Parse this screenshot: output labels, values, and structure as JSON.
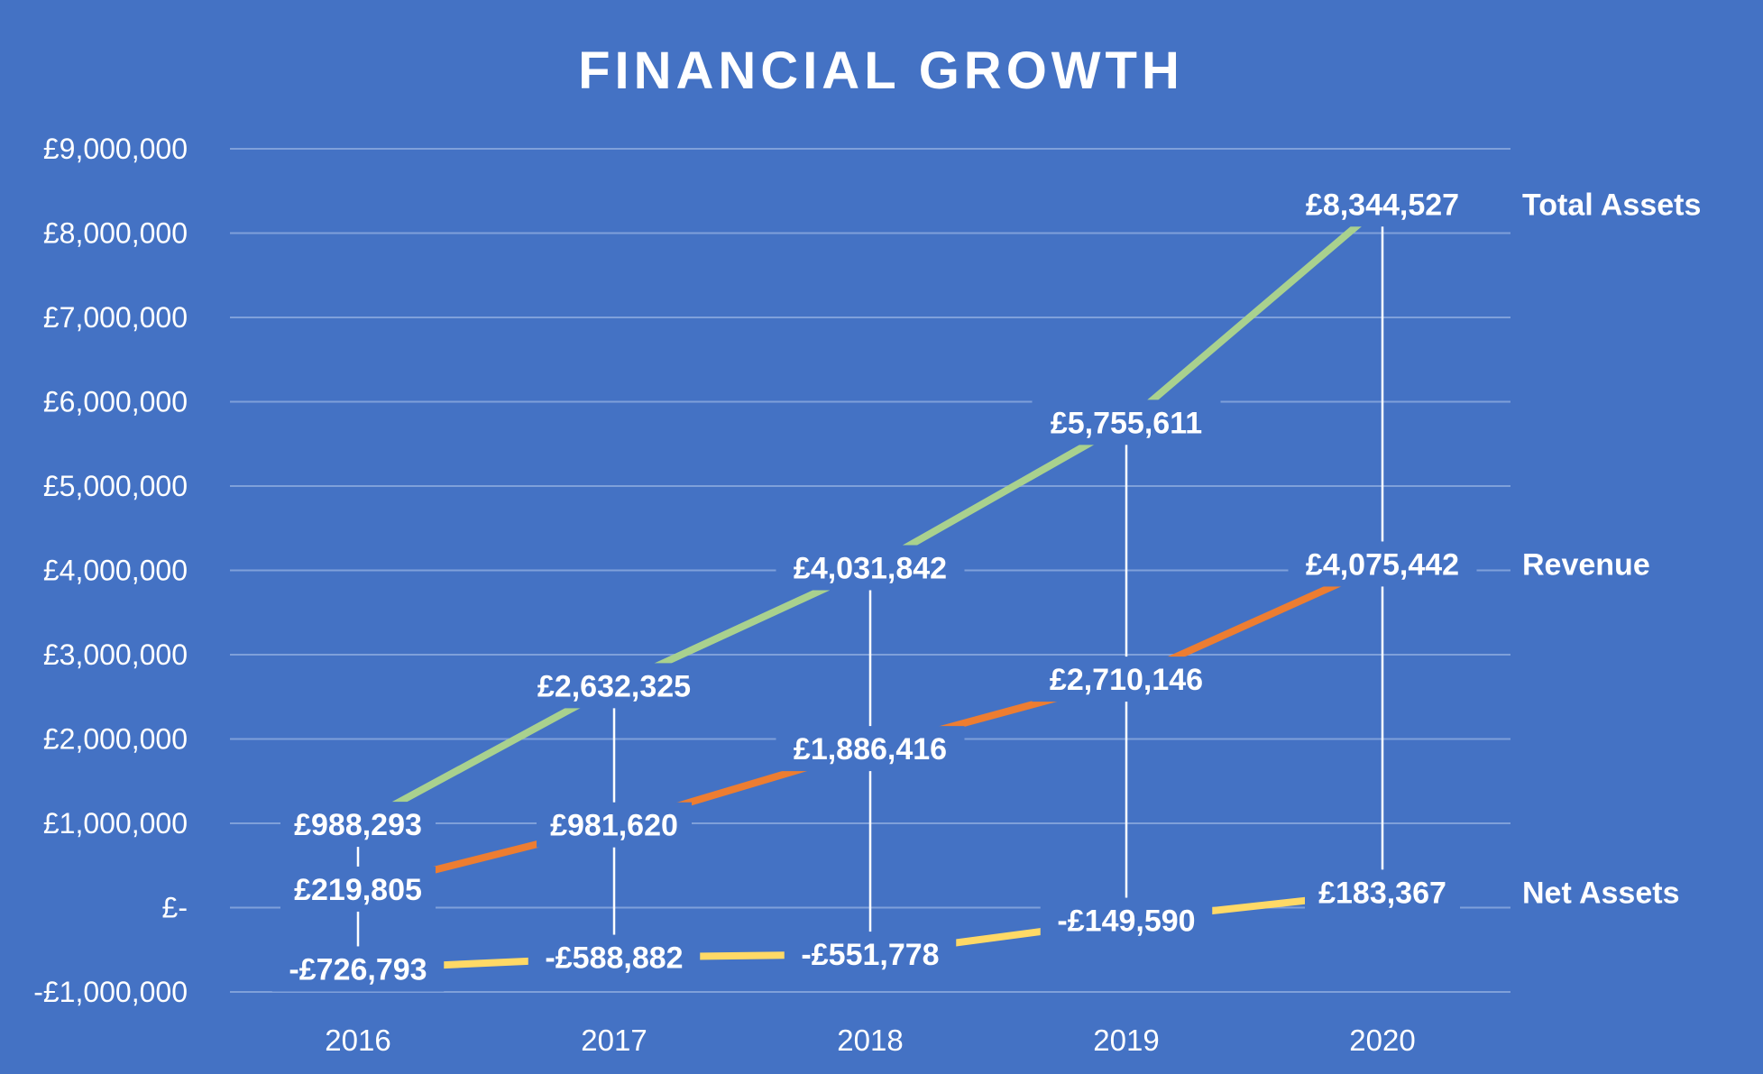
{
  "chart_data": {
    "type": "line",
    "title": "FINANCIAL GROWTH",
    "xlabel": "",
    "ylabel": "",
    "categories": [
      "2016",
      "2017",
      "2018",
      "2019",
      "2020"
    ],
    "ylim": [
      -1000000,
      9000000
    ],
    "y_ticks": [
      {
        "value": 9000000,
        "label": "£9,000,000"
      },
      {
        "value": 8000000,
        "label": "£8,000,000"
      },
      {
        "value": 7000000,
        "label": "£7,000,000"
      },
      {
        "value": 6000000,
        "label": "£6,000,000"
      },
      {
        "value": 5000000,
        "label": "£5,000,000"
      },
      {
        "value": 4000000,
        "label": "£4,000,000"
      },
      {
        "value": 3000000,
        "label": "£3,000,000"
      },
      {
        "value": 2000000,
        "label": "£2,000,000"
      },
      {
        "value": 1000000,
        "label": "£1,000,000"
      },
      {
        "value": 0,
        "label": "£-"
      },
      {
        "value": -1000000,
        "label": "-£1,000,000"
      }
    ],
    "grid": true,
    "legend": "right",
    "series": [
      {
        "name": "Total Assets",
        "color": "#A9D18E",
        "values": [
          988293,
          2632325,
          4031842,
          5755611,
          8344527
        ],
        "labels": [
          "£988,293",
          "£2,632,325",
          "£4,031,842",
          "£5,755,611",
          "£8,344,527"
        ]
      },
      {
        "name": "Revenue",
        "color": "#ED7D31",
        "values": [
          219805,
          981620,
          1886416,
          2710146,
          4075442
        ],
        "labels": [
          "£219,805",
          "£981,620",
          "£1,886,416",
          "£2,710,146",
          "£4,075,442"
        ]
      },
      {
        "name": "Net Assets",
        "color": "#FFD966",
        "values": [
          -726793,
          -588882,
          -551778,
          -149590,
          183367
        ],
        "labels": [
          "-£726,793",
          "-£588,882",
          "-£551,778",
          "-£149,590",
          "£183,367"
        ]
      }
    ],
    "colors": {
      "background": "#4472C4",
      "text": "#FFFFFF",
      "gridline": "#7FA0DA",
      "tick_text": "#FFFFFF",
      "drop_line": "#FFFFFF"
    }
  }
}
